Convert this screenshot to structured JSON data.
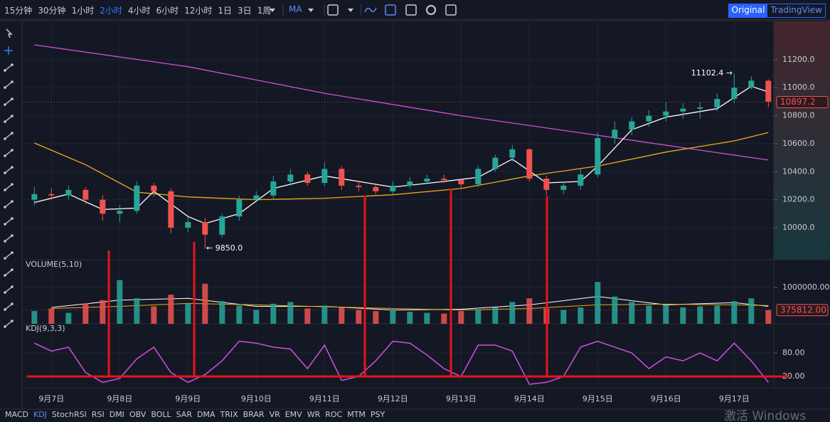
{
  "toolbar": {
    "intervals": [
      "15分钟",
      "30分钟",
      "1小时",
      "2小时",
      "4小时",
      "6小时",
      "12小时",
      "1日",
      "3日",
      "1周"
    ],
    "active_index": 3,
    "indicator": "MA",
    "views": [
      "Original",
      "TradingView"
    ],
    "active_view": 0
  },
  "indicator_tabs": {
    "items": [
      "MACD",
      "KDJ",
      "StochRSI",
      "RSI",
      "DMI",
      "OBV",
      "BOLL",
      "SAR",
      "DMA",
      "TRIX",
      "BRAR",
      "VR",
      "EMV",
      "WR",
      "ROC",
      "MTM",
      "PSY"
    ],
    "active_index": 1
  },
  "watermark": "激活 Windows",
  "chart_data": [
    {
      "type": "candlestick",
      "x": [
        6.75,
        7,
        7.25,
        7.5,
        7.75,
        8,
        8.25,
        8.5,
        8.75,
        9,
        9.25,
        9.5,
        9.75,
        10,
        10.25,
        10.5,
        10.75,
        11,
        11.25,
        11.5,
        11.75,
        12,
        12.25,
        12.5,
        12.75,
        13,
        13.25,
        13.5,
        13.75,
        14,
        14.25,
        14.5,
        14.75,
        15,
        15.25,
        15.5,
        15.75,
        16,
        16.25,
        16.5,
        16.75,
        17,
        17.25,
        17.5
      ],
      "open": [
        10200,
        10240,
        10230,
        10270,
        10200,
        10100,
        10120,
        10300,
        10260,
        10000,
        10040,
        9950,
        10080,
        10200,
        10230,
        10330,
        10380,
        10320,
        10420,
        10300,
        10290,
        10260,
        10300,
        10330,
        10350,
        10340,
        10310,
        10420,
        10500,
        10560,
        10350,
        10270,
        10300,
        10380,
        10640,
        10700,
        10760,
        10800,
        10830,
        10850,
        10860,
        10920,
        11000,
        11050
      ],
      "high": [
        10290,
        10280,
        10300,
        10290,
        10230,
        10160,
        10330,
        10320,
        10280,
        10080,
        10070,
        10100,
        10230,
        10260,
        10370,
        10420,
        10400,
        10470,
        10440,
        10330,
        10310,
        10330,
        10360,
        10380,
        10380,
        10350,
        10440,
        10520,
        10590,
        10570,
        10370,
        10330,
        10420,
        10680,
        10760,
        10790,
        10840,
        10900,
        10890,
        10900,
        10960,
        11102.4,
        11080,
        11060
      ],
      "low": [
        10160,
        10200,
        10200,
        10170,
        10050,
        10040,
        10100,
        10220,
        9960,
        9970,
        9850,
        9930,
        10050,
        10180,
        10210,
        10300,
        10300,
        10300,
        10270,
        10260,
        10240,
        10240,
        10280,
        10310,
        10320,
        10280,
        10290,
        10400,
        10470,
        10330,
        10230,
        10240,
        10270,
        10360,
        10600,
        10660,
        10720,
        10760,
        10780,
        10780,
        10830,
        10890,
        10990,
        10860
      ],
      "close": [
        10240,
        10230,
        10270,
        10200,
        10100,
        10120,
        10300,
        10260,
        10000,
        10040,
        9950,
        10080,
        10200,
        10230,
        10330,
        10380,
        10320,
        10420,
        10300,
        10290,
        10260,
        10300,
        10330,
        10350,
        10340,
        10310,
        10420,
        10500,
        10560,
        10350,
        10270,
        10300,
        10380,
        10640,
        10700,
        10760,
        10800,
        10830,
        10850,
        10860,
        10920,
        11000,
        11050,
        10900
      ],
      "up_color": "#26a69a",
      "down_color": "#ef5350",
      "xlim": [
        6.58,
        17.58
      ],
      "ylim": [
        9771,
        11474
      ],
      "yticks": [
        {
          "value": 10000,
          "label": "10000.0"
        },
        {
          "value": 10200,
          "label": "10200.0"
        },
        {
          "value": 10400,
          "label": "10400.0"
        },
        {
          "value": 10600,
          "label": "10600.0"
        },
        {
          "value": 10800,
          "label": "10800.0"
        },
        {
          "value": 11000,
          "label": "11000.0"
        },
        {
          "value": 11200,
          "label": "11200.0"
        }
      ],
      "grid": true,
      "lines": [
        {
          "color": "#d050d8",
          "x": [
            6.75,
            9,
            11,
            13,
            15,
            17.5
          ],
          "values": [
            11306,
            11150,
            10960,
            10800,
            10660,
            10483
          ]
        },
        {
          "color": "#f0a91e",
          "x": [
            6.75,
            7.5,
            8.25,
            9,
            10,
            11,
            12,
            13,
            14,
            15,
            16,
            17,
            17.5
          ],
          "values": [
            10605,
            10450,
            10254,
            10220,
            10200,
            10210,
            10235,
            10280,
            10370,
            10440,
            10540,
            10620,
            10680
          ]
        },
        {
          "color": "#ffffff",
          "x": [
            6.75,
            7.25,
            7.75,
            8.25,
            8.5,
            9,
            9.25,
            9.75,
            10.25,
            11,
            11.5,
            12,
            12.75,
            13.25,
            13.75,
            14.25,
            14.75,
            15,
            15.5,
            16,
            16.75,
            17.25,
            17.5
          ],
          "values": [
            10180,
            10240,
            10130,
            10140,
            10260,
            10080,
            10030,
            10100,
            10280,
            10370,
            10330,
            10290,
            10330,
            10360,
            10490,
            10320,
            10330,
            10440,
            10700,
            10790,
            10850,
            11010,
            10970
          ]
        }
      ],
      "annotations": [
        "11102.4 →",
        "← 9850.0"
      ],
      "last_value": 10897.2
    },
    {
      "type": "bar",
      "title": "VOLUME(5,10)",
      "x": [
        6.75,
        7,
        7.25,
        7.5,
        7.75,
        8,
        8.25,
        8.5,
        8.75,
        9,
        9.25,
        9.5,
        9.75,
        10,
        10.25,
        10.5,
        10.75,
        11,
        11.25,
        11.5,
        11.75,
        12,
        12.25,
        12.5,
        12.75,
        13,
        13.25,
        13.5,
        13.75,
        14,
        14.25,
        14.5,
        14.75,
        15,
        15.25,
        15.5,
        15.75,
        16,
        16.25,
        16.5,
        16.75,
        17,
        17.25,
        17.5
      ],
      "values": [
        350000,
        420000,
        300000,
        560000,
        650000,
        1200000,
        700000,
        480000,
        800000,
        560000,
        1100000,
        620000,
        500000,
        380000,
        550000,
        600000,
        420000,
        500000,
        450000,
        380000,
        350000,
        400000,
        330000,
        300000,
        280000,
        350000,
        400000,
        450000,
        600000,
        700000,
        420000,
        380000,
        450000,
        1150000,
        750000,
        600000,
        500000,
        520000,
        450000,
        480000,
        500000,
        620000,
        700000,
        375812
      ],
      "up_color": "#26a69a",
      "down_color": "#ef5350",
      "xlim": [
        6.58,
        17.58
      ],
      "ylim": [
        0,
        1760000
      ],
      "yticks": [
        {
          "value": 1000000,
          "label": "1000000.00"
        }
      ],
      "lines": [
        {
          "color": "#ffffff",
          "x": [
            7,
            8,
            9,
            10,
            11,
            12,
            13,
            14,
            15,
            16,
            17,
            17.5
          ],
          "values": [
            450000,
            650000,
            700000,
            480000,
            480000,
            380000,
            400000,
            520000,
            750000,
            520000,
            580000,
            480000
          ]
        },
        {
          "color": "#f0a91e",
          "x": [
            7,
            8,
            9,
            10,
            11,
            12,
            13,
            14,
            15,
            16,
            17,
            17.5
          ],
          "values": [
            420000,
            480000,
            560000,
            520000,
            470000,
            420000,
            380000,
            420000,
            520000,
            540000,
            520000,
            500000
          ]
        }
      ],
      "last_value": {
        "value": 375812,
        "label": "375812.00"
      }
    },
    {
      "type": "line",
      "title": "KDJ(9,3,3)",
      "x": [
        6.75,
        7,
        7.25,
        7.5,
        7.75,
        8,
        8.25,
        8.5,
        8.75,
        9,
        9.25,
        9.5,
        9.75,
        10,
        10.25,
        10.5,
        10.75,
        11,
        11.25,
        11.5,
        11.75,
        12,
        12.25,
        12.5,
        12.75,
        13,
        13.25,
        13.5,
        13.75,
        14,
        14.25,
        14.5,
        14.75,
        15,
        15.25,
        15.5,
        15.75,
        16,
        16.25,
        16.5,
        16.75,
        17,
        17.25,
        17.5
      ],
      "series": [
        {
          "color": "#d050e0",
          "values": [
            105,
            85,
            95,
            30,
            5,
            15,
            65,
            95,
            30,
            5,
            25,
            60,
            110,
            105,
            95,
            90,
            40,
            100,
            10,
            20,
            60,
            110,
            105,
            75,
            40,
            20,
            100,
            100,
            85,
            0,
            5,
            20,
            95,
            110,
            95,
            80,
            40,
            70,
            60,
            80,
            60,
            105,
            60,
            5
          ]
        }
      ],
      "xlim": [
        6.58,
        17.58
      ],
      "ylim": [
        -9,
        154.5
      ],
      "yticks": [
        {
          "value": 20,
          "label": "20.00"
        },
        {
          "value": 80,
          "label": "80.00"
        }
      ],
      "xticks": [
        {
          "value": 7,
          "label": "9月7日"
        },
        {
          "value": 8,
          "label": "9月8日"
        },
        {
          "value": 9,
          "label": "9月9日"
        },
        {
          "value": 10,
          "label": "9月10日"
        },
        {
          "value": 11,
          "label": "9月11日"
        },
        {
          "value": 12,
          "label": "9月12日"
        },
        {
          "value": 13,
          "label": "9月13日"
        },
        {
          "value": 14,
          "label": "9月14日"
        },
        {
          "value": 15,
          "label": "9月15日"
        },
        {
          "value": 16,
          "label": "9月16日"
        },
        {
          "value": 17,
          "label": "9月17日"
        }
      ]
    }
  ]
}
